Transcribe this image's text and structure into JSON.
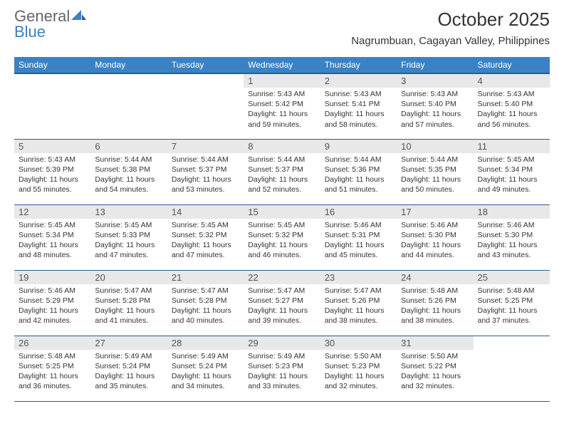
{
  "brand": {
    "part1": "General",
    "part2": "Blue"
  },
  "title": "October 2025",
  "location": "Nagrumbuan, Cagayan Valley, Philippines",
  "colors": {
    "header_bg": "#3b82c4",
    "header_border": "#2a5d8f",
    "daynum_bg": "#e8e8e8",
    "text": "#333333",
    "background": "#ffffff"
  },
  "weekdays": [
    "Sunday",
    "Monday",
    "Tuesday",
    "Wednesday",
    "Thursday",
    "Friday",
    "Saturday"
  ],
  "weeks": [
    [
      null,
      null,
      null,
      {
        "n": "1",
        "sr": "Sunrise: 5:43 AM",
        "ss": "Sunset: 5:42 PM",
        "dl": "Daylight: 11 hours and 59 minutes."
      },
      {
        "n": "2",
        "sr": "Sunrise: 5:43 AM",
        "ss": "Sunset: 5:41 PM",
        "dl": "Daylight: 11 hours and 58 minutes."
      },
      {
        "n": "3",
        "sr": "Sunrise: 5:43 AM",
        "ss": "Sunset: 5:40 PM",
        "dl": "Daylight: 11 hours and 57 minutes."
      },
      {
        "n": "4",
        "sr": "Sunrise: 5:43 AM",
        "ss": "Sunset: 5:40 PM",
        "dl": "Daylight: 11 hours and 56 minutes."
      }
    ],
    [
      {
        "n": "5",
        "sr": "Sunrise: 5:43 AM",
        "ss": "Sunset: 5:39 PM",
        "dl": "Daylight: 11 hours and 55 minutes."
      },
      {
        "n": "6",
        "sr": "Sunrise: 5:44 AM",
        "ss": "Sunset: 5:38 PM",
        "dl": "Daylight: 11 hours and 54 minutes."
      },
      {
        "n": "7",
        "sr": "Sunrise: 5:44 AM",
        "ss": "Sunset: 5:37 PM",
        "dl": "Daylight: 11 hours and 53 minutes."
      },
      {
        "n": "8",
        "sr": "Sunrise: 5:44 AM",
        "ss": "Sunset: 5:37 PM",
        "dl": "Daylight: 11 hours and 52 minutes."
      },
      {
        "n": "9",
        "sr": "Sunrise: 5:44 AM",
        "ss": "Sunset: 5:36 PM",
        "dl": "Daylight: 11 hours and 51 minutes."
      },
      {
        "n": "10",
        "sr": "Sunrise: 5:44 AM",
        "ss": "Sunset: 5:35 PM",
        "dl": "Daylight: 11 hours and 50 minutes."
      },
      {
        "n": "11",
        "sr": "Sunrise: 5:45 AM",
        "ss": "Sunset: 5:34 PM",
        "dl": "Daylight: 11 hours and 49 minutes."
      }
    ],
    [
      {
        "n": "12",
        "sr": "Sunrise: 5:45 AM",
        "ss": "Sunset: 5:34 PM",
        "dl": "Daylight: 11 hours and 48 minutes."
      },
      {
        "n": "13",
        "sr": "Sunrise: 5:45 AM",
        "ss": "Sunset: 5:33 PM",
        "dl": "Daylight: 11 hours and 47 minutes."
      },
      {
        "n": "14",
        "sr": "Sunrise: 5:45 AM",
        "ss": "Sunset: 5:32 PM",
        "dl": "Daylight: 11 hours and 47 minutes."
      },
      {
        "n": "15",
        "sr": "Sunrise: 5:45 AM",
        "ss": "Sunset: 5:32 PM",
        "dl": "Daylight: 11 hours and 46 minutes."
      },
      {
        "n": "16",
        "sr": "Sunrise: 5:46 AM",
        "ss": "Sunset: 5:31 PM",
        "dl": "Daylight: 11 hours and 45 minutes."
      },
      {
        "n": "17",
        "sr": "Sunrise: 5:46 AM",
        "ss": "Sunset: 5:30 PM",
        "dl": "Daylight: 11 hours and 44 minutes."
      },
      {
        "n": "18",
        "sr": "Sunrise: 5:46 AM",
        "ss": "Sunset: 5:30 PM",
        "dl": "Daylight: 11 hours and 43 minutes."
      }
    ],
    [
      {
        "n": "19",
        "sr": "Sunrise: 5:46 AM",
        "ss": "Sunset: 5:29 PM",
        "dl": "Daylight: 11 hours and 42 minutes."
      },
      {
        "n": "20",
        "sr": "Sunrise: 5:47 AM",
        "ss": "Sunset: 5:28 PM",
        "dl": "Daylight: 11 hours and 41 minutes."
      },
      {
        "n": "21",
        "sr": "Sunrise: 5:47 AM",
        "ss": "Sunset: 5:28 PM",
        "dl": "Daylight: 11 hours and 40 minutes."
      },
      {
        "n": "22",
        "sr": "Sunrise: 5:47 AM",
        "ss": "Sunset: 5:27 PM",
        "dl": "Daylight: 11 hours and 39 minutes."
      },
      {
        "n": "23",
        "sr": "Sunrise: 5:47 AM",
        "ss": "Sunset: 5:26 PM",
        "dl": "Daylight: 11 hours and 38 minutes."
      },
      {
        "n": "24",
        "sr": "Sunrise: 5:48 AM",
        "ss": "Sunset: 5:26 PM",
        "dl": "Daylight: 11 hours and 38 minutes."
      },
      {
        "n": "25",
        "sr": "Sunrise: 5:48 AM",
        "ss": "Sunset: 5:25 PM",
        "dl": "Daylight: 11 hours and 37 minutes."
      }
    ],
    [
      {
        "n": "26",
        "sr": "Sunrise: 5:48 AM",
        "ss": "Sunset: 5:25 PM",
        "dl": "Daylight: 11 hours and 36 minutes."
      },
      {
        "n": "27",
        "sr": "Sunrise: 5:49 AM",
        "ss": "Sunset: 5:24 PM",
        "dl": "Daylight: 11 hours and 35 minutes."
      },
      {
        "n": "28",
        "sr": "Sunrise: 5:49 AM",
        "ss": "Sunset: 5:24 PM",
        "dl": "Daylight: 11 hours and 34 minutes."
      },
      {
        "n": "29",
        "sr": "Sunrise: 5:49 AM",
        "ss": "Sunset: 5:23 PM",
        "dl": "Daylight: 11 hours and 33 minutes."
      },
      {
        "n": "30",
        "sr": "Sunrise: 5:50 AM",
        "ss": "Sunset: 5:23 PM",
        "dl": "Daylight: 11 hours and 32 minutes."
      },
      {
        "n": "31",
        "sr": "Sunrise: 5:50 AM",
        "ss": "Sunset: 5:22 PM",
        "dl": "Daylight: 11 hours and 32 minutes."
      },
      null
    ]
  ]
}
